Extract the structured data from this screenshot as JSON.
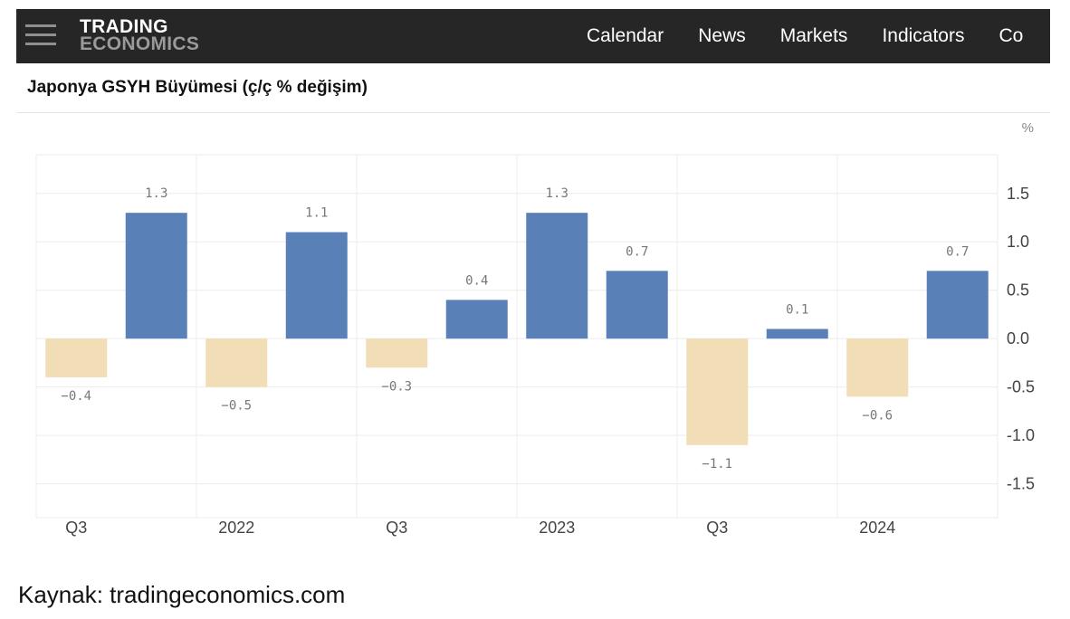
{
  "nav": {
    "logo_line1": "TRADING",
    "logo_line2": "ECONOMICS",
    "items": [
      "Calendar",
      "News",
      "Markets",
      "Indicators",
      "Co"
    ]
  },
  "chart_header": {
    "title": "Japonya GSYH Büyümesi (ç/ç % değişim)"
  },
  "unit": "%",
  "source": "Kaynak: tradingeconomics.com",
  "colors": {
    "positive": "#5a80b8",
    "negative": "#f2deb6",
    "navbar": "#262626"
  },
  "chart_data": {
    "type": "bar",
    "title": "Japonya GSYH Büyümesi (ç/ç % değişim)",
    "ylabel": "%",
    "ylim": [
      -1.85,
      1.9
    ],
    "yticks": [
      1.5,
      1.0,
      0.5,
      0.0,
      -0.5,
      -1.0,
      -1.5
    ],
    "ytick_labels": [
      "1.5",
      "1.0",
      "0.5",
      "0.0",
      "-0.5",
      "-1.0",
      "-1.5"
    ],
    "xtick_labels": [
      {
        "label": "Q3",
        "index": 0
      },
      {
        "label": "2022",
        "index": 2
      },
      {
        "label": "Q3",
        "index": 4
      },
      {
        "label": "2023",
        "index": 6
      },
      {
        "label": "Q3",
        "index": 8
      },
      {
        "label": "2024",
        "index": 10
      }
    ],
    "values": [
      -0.4,
      1.3,
      -0.5,
      1.1,
      -0.3,
      0.4,
      1.3,
      0.7,
      -1.1,
      0.1,
      -0.6,
      0.7
    ],
    "data_labels": [
      "−0.4",
      "1.3",
      "−0.5",
      "1.1",
      "−0.3",
      "0.4",
      "1.3",
      "0.7",
      "−1.1",
      "0.1",
      "−0.6",
      "0.7"
    ],
    "grid": true,
    "y_axis_position": "right"
  }
}
